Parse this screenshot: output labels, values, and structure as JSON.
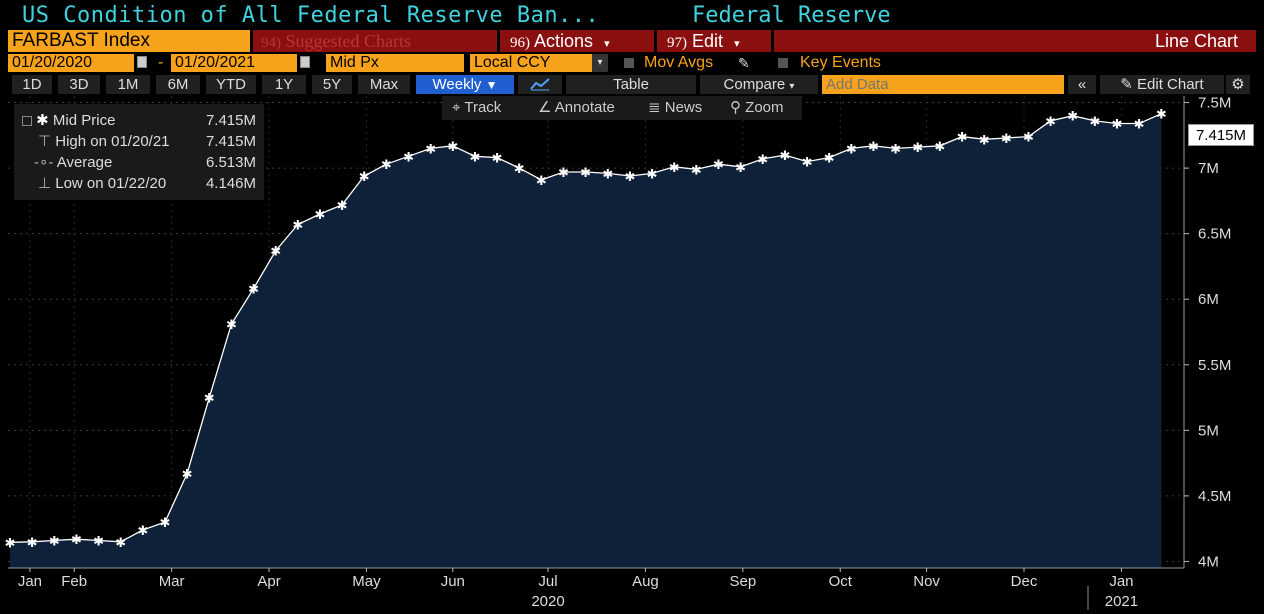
{
  "header": {
    "title": "US Condition of All Federal Reserve Ban...",
    "source": "Federal Reserve"
  },
  "toolbar": {
    "ticker": "FARBAST Index",
    "suggested_num": "94)",
    "suggested_label": "Suggested Charts",
    "actions_num": "96)",
    "actions_label": "Actions",
    "edit_num": "97)",
    "edit_label": "Edit",
    "chart_type": "Line Chart"
  },
  "options": {
    "start_date": "01/20/2020",
    "dash": "-",
    "end_date": "01/20/2021",
    "field": "Mid Px",
    "currency": "Local CCY",
    "mov_avgs": "Mov Avgs",
    "key_events": "Key Events"
  },
  "periods": {
    "items": [
      "1D",
      "3D",
      "1M",
      "6M",
      "YTD",
      "1Y",
      "5Y",
      "Max"
    ],
    "frequency": "Weekly",
    "table": "Table",
    "compare": "Compare",
    "add_data_placeholder": "Add Data",
    "edit_chart": "Edit Chart"
  },
  "tools": {
    "track": "Track",
    "annotate": "Annotate",
    "news": "News",
    "zoom": "Zoom"
  },
  "legend": {
    "rows": [
      {
        "label": "Mid Price",
        "value": "7.415M"
      },
      {
        "label": "High on 01/20/21",
        "value": "7.415M"
      },
      {
        "label": "Average",
        "value": "6.513M"
      },
      {
        "label": "Low on 01/22/20",
        "value": "4.146M"
      }
    ]
  },
  "last_value_label": "7.415M",
  "colors": {
    "accent": "#f7a21b",
    "title": "#3fd3e0",
    "menu_bar": "#8a1010",
    "plot_fill": "#0e2138",
    "line": "#ffffff"
  },
  "chart_data": {
    "type": "area",
    "title": "US Condition of All Federal Reserve Ban...",
    "y_unit": "M",
    "ylim": [
      3.95,
      7.55
    ],
    "y_ticks": [
      "4M",
      "4.5M",
      "5M",
      "5.5M",
      "6M",
      "6.5M",
      "7M",
      "7.5M"
    ],
    "y_tick_values": [
      4.0,
      4.5,
      5.0,
      5.5,
      6.0,
      6.5,
      7.0,
      7.5
    ],
    "x_tick_labels": [
      "Jan",
      "Feb",
      "Mar",
      "Apr",
      "May",
      "Jun",
      "Jul",
      "Aug",
      "Sep",
      "Oct",
      "Nov",
      "Dec",
      "Jan"
    ],
    "x_tick_week_index": [
      0.9,
      2.9,
      7.3,
      11.7,
      16.1,
      20.0,
      24.3,
      28.7,
      33.1,
      37.5,
      41.4,
      45.8,
      50.2
    ],
    "year_labels": [
      {
        "label": "2020",
        "week_index": 24.3
      },
      {
        "label": "2021",
        "week_index": 50.2
      }
    ],
    "grid": true,
    "series": [
      {
        "name": "Mid Price",
        "dates": [
          "2020-01-22",
          "2020-01-29",
          "2020-02-05",
          "2020-02-12",
          "2020-02-19",
          "2020-02-26",
          "2020-03-04",
          "2020-03-11",
          "2020-03-18",
          "2020-03-25",
          "2020-04-01",
          "2020-04-08",
          "2020-04-15",
          "2020-04-22",
          "2020-04-29",
          "2020-05-06",
          "2020-05-13",
          "2020-05-20",
          "2020-05-27",
          "2020-06-03",
          "2020-06-10",
          "2020-06-17",
          "2020-06-24",
          "2020-07-01",
          "2020-07-08",
          "2020-07-15",
          "2020-07-22",
          "2020-07-29",
          "2020-08-05",
          "2020-08-12",
          "2020-08-19",
          "2020-08-26",
          "2020-09-02",
          "2020-09-09",
          "2020-09-16",
          "2020-09-23",
          "2020-09-30",
          "2020-10-07",
          "2020-10-14",
          "2020-10-21",
          "2020-10-28",
          "2020-11-04",
          "2020-11-11",
          "2020-11-18",
          "2020-11-25",
          "2020-12-02",
          "2020-12-09",
          "2020-12-16",
          "2020-12-23",
          "2020-12-30",
          "2021-01-06",
          "2021-01-13",
          "2021-01-20"
        ],
        "values": [
          4.146,
          4.15,
          4.16,
          4.17,
          4.16,
          4.15,
          4.24,
          4.3,
          4.67,
          5.25,
          5.81,
          6.08,
          6.37,
          6.57,
          6.65,
          6.72,
          6.94,
          7.03,
          7.09,
          7.15,
          7.17,
          7.09,
          7.08,
          7.0,
          6.91,
          6.97,
          6.97,
          6.96,
          6.94,
          6.96,
          7.01,
          6.99,
          7.03,
          7.01,
          7.07,
          7.1,
          7.05,
          7.08,
          7.15,
          7.17,
          7.15,
          7.16,
          7.17,
          7.24,
          7.22,
          7.23,
          7.24,
          7.36,
          7.4,
          7.36,
          7.34,
          7.34,
          7.415
        ]
      }
    ]
  }
}
